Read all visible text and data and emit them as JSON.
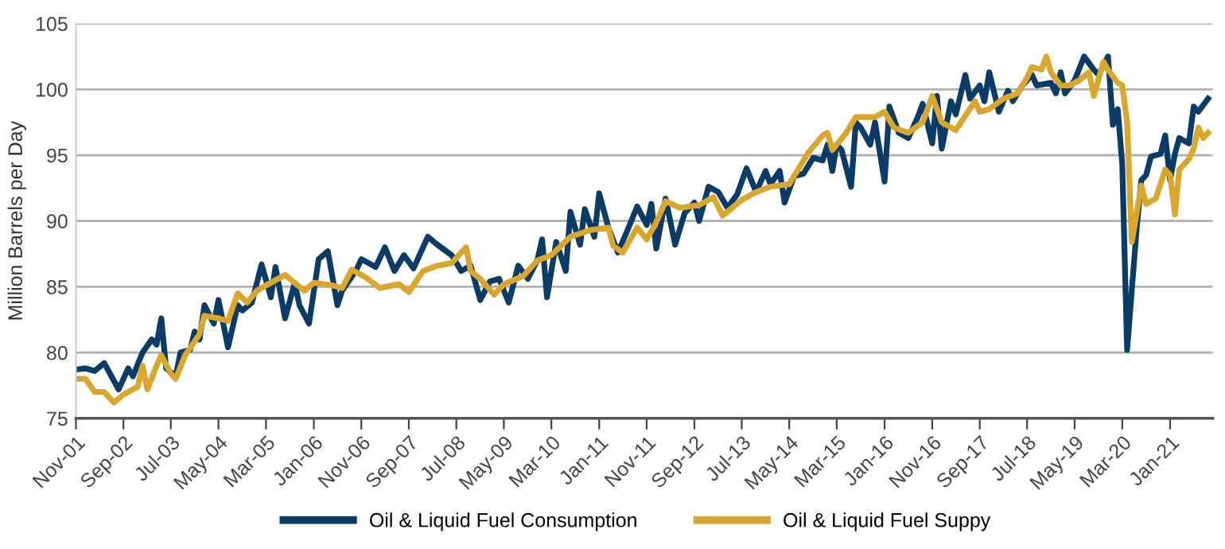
{
  "chart_data": {
    "type": "line",
    "ylabel": "Million Barrels per Day",
    "xlim": [
      "2001-11",
      "2021-10"
    ],
    "ylim": [
      75,
      105
    ],
    "yticks": [
      75,
      80,
      85,
      90,
      95,
      100,
      105
    ],
    "xticks": [
      {
        "value": "2001-11",
        "label": "Nov-01"
      },
      {
        "value": "2002-09",
        "label": "Sep-02"
      },
      {
        "value": "2003-07",
        "label": "Jul-03"
      },
      {
        "value": "2004-05",
        "label": "May-04"
      },
      {
        "value": "2005-03",
        "label": "Mar-05"
      },
      {
        "value": "2006-01",
        "label": "Jan-06"
      },
      {
        "value": "2006-11",
        "label": "Nov-06"
      },
      {
        "value": "2007-09",
        "label": "Sep-07"
      },
      {
        "value": "2008-07",
        "label": "Jul-08"
      },
      {
        "value": "2009-05",
        "label": "May-09"
      },
      {
        "value": "2010-03",
        "label": "Mar-10"
      },
      {
        "value": "2011-01",
        "label": "Jan-11"
      },
      {
        "value": "2011-11",
        "label": "Nov-11"
      },
      {
        "value": "2012-09",
        "label": "Sep-12"
      },
      {
        "value": "2013-07",
        "label": "Jul-13"
      },
      {
        "value": "2014-05",
        "label": "May-14"
      },
      {
        "value": "2015-03",
        "label": "Mar-15"
      },
      {
        "value": "2016-01",
        "label": "Jan-16"
      },
      {
        "value": "2016-11",
        "label": "Nov-16"
      },
      {
        "value": "2017-09",
        "label": "Sep-17"
      },
      {
        "value": "2018-07",
        "label": "Jul-18"
      },
      {
        "value": "2019-05",
        "label": "May-19"
      },
      {
        "value": "2020-03",
        "label": "Mar-20"
      },
      {
        "value": "2021-01",
        "label": "Jan-21"
      }
    ],
    "grid": "y",
    "legend": "bottom",
    "marker": "none",
    "line_style": "solid",
    "series": [
      {
        "name": "Oil & Liquid Fuel Consumption",
        "color": "#0b3c68",
        "x": [
          "2001-11",
          "2002-01",
          "2002-03",
          "2002-05",
          "2002-08",
          "2002-10",
          "2002-11",
          "2003-01",
          "2003-03",
          "2003-04",
          "2003-05",
          "2003-06",
          "2003-08",
          "2003-09",
          "2003-11",
          "2003-12",
          "2004-01",
          "2004-02",
          "2004-04",
          "2004-05",
          "2004-07",
          "2004-09",
          "2004-10",
          "2004-12",
          "2005-02",
          "2005-04",
          "2005-05",
          "2005-07",
          "2005-09",
          "2005-10",
          "2005-12",
          "2006-02",
          "2006-04",
          "2006-06",
          "2006-07",
          "2006-10",
          "2006-11",
          "2007-02",
          "2007-04",
          "2007-06",
          "2007-08",
          "2007-10",
          "2008-01",
          "2008-03",
          "2008-06",
          "2008-08",
          "2008-10",
          "2008-12",
          "2009-02",
          "2009-04",
          "2009-06",
          "2009-08",
          "2009-10",
          "2009-12",
          "2010-01",
          "2010-02",
          "2010-04",
          "2010-06",
          "2010-07",
          "2010-09",
          "2010-10",
          "2010-12",
          "2011-01",
          "2011-03",
          "2011-05",
          "2011-07",
          "2011-09",
          "2011-11",
          "2011-12",
          "2012-01",
          "2012-03",
          "2012-05",
          "2012-07",
          "2012-09",
          "2012-10",
          "2012-12",
          "2013-02",
          "2013-04",
          "2013-06",
          "2013-08",
          "2013-10",
          "2013-12",
          "2014-01",
          "2014-03",
          "2014-04",
          "2014-06",
          "2014-08",
          "2014-10",
          "2014-12",
          "2015-01",
          "2015-02",
          "2015-03",
          "2015-04",
          "2015-06",
          "2015-07",
          "2015-08",
          "2015-10",
          "2015-11",
          "2016-01",
          "2016-02",
          "2016-04",
          "2016-06",
          "2016-08",
          "2016-09",
          "2016-11",
          "2016-12",
          "2017-01",
          "2017-03",
          "2017-04",
          "2017-06",
          "2017-07",
          "2017-09",
          "2017-10",
          "2017-11",
          "2018-01",
          "2018-03",
          "2018-04",
          "2018-06",
          "2018-08",
          "2018-09",
          "2018-12",
          "2019-01",
          "2019-02",
          "2019-03",
          "2019-05",
          "2019-07",
          "2019-09",
          "2019-10",
          "2019-12",
          "2020-01",
          "2020-02",
          "2020-03",
          "2020-04",
          "2020-06",
          "2020-07",
          "2020-08",
          "2020-09",
          "2020-11",
          "2020-12",
          "2021-01",
          "2021-02",
          "2021-03",
          "2021-05",
          "2021-06",
          "2021-07",
          "2021-09"
        ],
        "values": [
          78.7,
          78.8,
          78.6,
          79.2,
          77.2,
          78.8,
          78.2,
          80.0,
          81.0,
          80.6,
          82.6,
          78.8,
          78.2,
          80.0,
          80.2,
          81.6,
          81.0,
          83.6,
          82.2,
          84.0,
          80.4,
          83.6,
          83.2,
          83.8,
          86.7,
          84.2,
          86.5,
          82.6,
          85.3,
          83.6,
          82.2,
          87.1,
          87.7,
          83.6,
          84.7,
          86.3,
          87.1,
          86.5,
          88.0,
          86.2,
          87.4,
          86.4,
          88.8,
          88.2,
          87.4,
          86.2,
          86.6,
          84.0,
          85.4,
          85.6,
          83.8,
          86.6,
          85.6,
          87.0,
          88.6,
          84.2,
          88.4,
          86.2,
          90.7,
          88.2,
          90.9,
          88.8,
          92.1,
          89.5,
          87.6,
          89.3,
          91.1,
          89.7,
          91.3,
          87.9,
          91.7,
          88.2,
          90.6,
          91.4,
          90.0,
          92.6,
          92.2,
          91.0,
          92.0,
          94.0,
          92.2,
          93.8,
          92.8,
          93.8,
          91.4,
          93.4,
          93.6,
          94.8,
          94.6,
          95.8,
          93.8,
          95.8,
          95.4,
          92.6,
          97.5,
          97.1,
          95.8,
          97.5,
          93.0,
          98.7,
          96.7,
          96.3,
          97.9,
          98.9,
          95.9,
          99.5,
          95.5,
          99.1,
          98.1,
          101.1,
          99.3,
          100.3,
          99.1,
          101.3,
          98.3,
          99.9,
          99.1,
          100.3,
          101.1,
          100.3,
          100.5,
          99.7,
          101.3,
          99.7,
          100.7,
          102.5,
          101.5,
          101.1,
          102.5,
          97.3,
          98.5,
          94.3,
          80.2,
          89.4,
          93.1,
          93.5,
          94.9,
          95.1,
          96.5,
          93.1,
          95.1,
          96.3,
          95.9,
          98.7,
          98.3,
          99.3
        ]
      },
      {
        "name": "Oil & Liquid Fuel Suppy",
        "color": "#d9a62e",
        "x": [
          "2001-11",
          "2002-01",
          "2002-03",
          "2002-05",
          "2002-07",
          "2002-09",
          "2002-10",
          "2002-12",
          "2003-01",
          "2003-02",
          "2003-04",
          "2003-05",
          "2003-07",
          "2003-08",
          "2003-10",
          "2004-01",
          "2004-02",
          "2004-05",
          "2004-07",
          "2004-09",
          "2004-11",
          "2005-01",
          "2005-03",
          "2005-07",
          "2005-09",
          "2005-11",
          "2006-01",
          "2006-05",
          "2006-07",
          "2006-09",
          "2006-12",
          "2007-03",
          "2007-07",
          "2007-09",
          "2007-12",
          "2008-03",
          "2008-06",
          "2008-09",
          "2008-10",
          "2008-12",
          "2009-03",
          "2009-05",
          "2009-09",
          "2009-12",
          "2010-03",
          "2010-07",
          "2010-11",
          "2011-03",
          "2011-04",
          "2011-06",
          "2011-09",
          "2011-11",
          "2012-01",
          "2012-03",
          "2012-06",
          "2012-10",
          "2013-01",
          "2013-03",
          "2013-07",
          "2013-10",
          "2014-01",
          "2014-05",
          "2014-07",
          "2014-09",
          "2014-12",
          "2015-01",
          "2015-02",
          "2015-05",
          "2015-07",
          "2015-11",
          "2016-01",
          "2016-03",
          "2016-06",
          "2016-09",
          "2016-11",
          "2017-01",
          "2017-04",
          "2017-08",
          "2017-09",
          "2017-11",
          "2018-02",
          "2018-05",
          "2018-07",
          "2018-08",
          "2018-10",
          "2018-11",
          "2018-12",
          "2019-02",
          "2019-04",
          "2019-06",
          "2019-08",
          "2019-09",
          "2019-11",
          "2019-12",
          "2020-02",
          "2020-03",
          "2020-04",
          "2020-05",
          "2020-07",
          "2020-08",
          "2020-10",
          "2020-12",
          "2021-01",
          "2021-02",
          "2021-03",
          "2021-05",
          "2021-06",
          "2021-07",
          "2021-08",
          "2021-09"
        ],
        "values": [
          78.0,
          78.0,
          77.0,
          77.0,
          76.2,
          76.8,
          77.0,
          77.4,
          79.0,
          77.2,
          79.0,
          79.8,
          78.4,
          78.0,
          79.8,
          81.4,
          82.8,
          82.6,
          82.4,
          84.5,
          83.8,
          84.7,
          85.1,
          85.9,
          85.3,
          84.7,
          85.3,
          85.1,
          84.9,
          86.3,
          85.7,
          84.9,
          85.2,
          84.6,
          86.2,
          86.6,
          86.8,
          88.0,
          86.2,
          85.6,
          84.4,
          85.2,
          85.8,
          87.0,
          87.4,
          88.8,
          89.3,
          89.5,
          88.1,
          87.6,
          89.5,
          88.6,
          89.9,
          91.5,
          91.0,
          91.2,
          91.8,
          90.4,
          91.6,
          92.2,
          92.6,
          92.8,
          94.0,
          95.2,
          96.5,
          96.7,
          95.4,
          96.7,
          97.9,
          97.9,
          98.3,
          97.1,
          96.7,
          97.5,
          99.5,
          97.5,
          96.9,
          99.1,
          98.3,
          98.5,
          99.3,
          99.7,
          100.9,
          101.7,
          101.5,
          102.5,
          101.3,
          100.3,
          100.3,
          100.7,
          101.3,
          99.5,
          102.1,
          101.5,
          100.5,
          100.3,
          97.5,
          88.4,
          92.7,
          91.3,
          91.7,
          93.9,
          93.5,
          90.5,
          93.9,
          94.7,
          95.5,
          97.1,
          96.3,
          96.7
        ]
      }
    ]
  }
}
